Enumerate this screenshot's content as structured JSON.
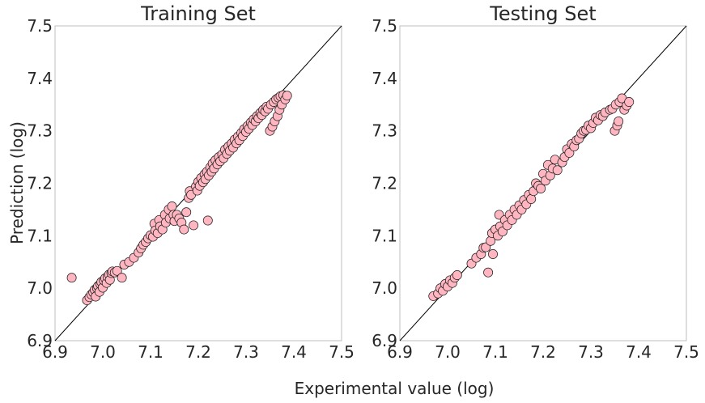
{
  "figure": {
    "xlabel": "Experimental value (log)",
    "ylabel": "Prediction (log)"
  },
  "chart_data": [
    {
      "type": "scatter",
      "title": "Training Set",
      "xlim": [
        6.9,
        7.5
      ],
      "ylim": [
        6.9,
        7.5
      ],
      "xticks": [
        "6.9",
        "7.0",
        "7.1",
        "7.2",
        "7.3",
        "7.4",
        "7.5"
      ],
      "yticks": [
        "6.9",
        "7.0",
        "7.1",
        "7.2",
        "7.3",
        "7.4",
        "7.5"
      ],
      "grid": false,
      "identity_line": true,
      "marker_color": "#ffb6c1",
      "points": [
        [
          6.935,
          7.02
        ],
        [
          6.967,
          6.977
        ],
        [
          6.972,
          6.983
        ],
        [
          6.976,
          6.988
        ],
        [
          6.98,
          6.992
        ],
        [
          6.983,
          6.997
        ],
        [
          6.985,
          6.984
        ],
        [
          6.988,
          7.0
        ],
        [
          6.99,
          7.004
        ],
        [
          6.993,
          6.993
        ],
        [
          6.995,
          7.008
        ],
        [
          6.997,
          7.012
        ],
        [
          7.0,
          7.001
        ],
        [
          7.002,
          7.015
        ],
        [
          7.005,
          7.019
        ],
        [
          7.008,
          7.01
        ],
        [
          7.01,
          7.022
        ],
        [
          7.013,
          7.026
        ],
        [
          7.015,
          7.016
        ],
        [
          7.018,
          7.029
        ],
        [
          7.02,
          7.032
        ],
        [
          7.025,
          7.03
        ],
        [
          7.03,
          7.033
        ],
        [
          7.04,
          7.02
        ],
        [
          7.045,
          7.045
        ],
        [
          7.055,
          7.05
        ],
        [
          7.065,
          7.058
        ],
        [
          7.075,
          7.068
        ],
        [
          7.08,
          7.076
        ],
        [
          7.085,
          7.083
        ],
        [
          7.09,
          7.088
        ],
        [
          7.095,
          7.095
        ],
        [
          7.1,
          7.101
        ],
        [
          7.105,
          7.098
        ],
        [
          7.108,
          7.123
        ],
        [
          7.11,
          7.11
        ],
        [
          7.115,
          7.105
        ],
        [
          7.118,
          7.13
        ],
        [
          7.12,
          7.118
        ],
        [
          7.125,
          7.112
        ],
        [
          7.13,
          7.14
        ],
        [
          7.132,
          7.125
        ],
        [
          7.138,
          7.15
        ],
        [
          7.14,
          7.133
        ],
        [
          7.145,
          7.156
        ],
        [
          7.148,
          7.14
        ],
        [
          7.15,
          7.128
        ],
        [
          7.155,
          7.14
        ],
        [
          7.16,
          7.133
        ],
        [
          7.165,
          7.125
        ],
        [
          7.17,
          7.112
        ],
        [
          7.175,
          7.145
        ],
        [
          7.18,
          7.172
        ],
        [
          7.182,
          7.185
        ],
        [
          7.185,
          7.178
        ],
        [
          7.19,
          7.12
        ],
        [
          7.195,
          7.194
        ],
        [
          7.198,
          7.186
        ],
        [
          7.2,
          7.203
        ],
        [
          7.203,
          7.195
        ],
        [
          7.206,
          7.21
        ],
        [
          7.21,
          7.202
        ],
        [
          7.213,
          7.217
        ],
        [
          7.215,
          7.208
        ],
        [
          7.218,
          7.222
        ],
        [
          7.22,
          7.129
        ],
        [
          7.222,
          7.215
        ],
        [
          7.225,
          7.23
        ],
        [
          7.228,
          7.222
        ],
        [
          7.23,
          7.238
        ],
        [
          7.233,
          7.228
        ],
        [
          7.236,
          7.244
        ],
        [
          7.24,
          7.236
        ],
        [
          7.243,
          7.25
        ],
        [
          7.246,
          7.242
        ],
        [
          7.25,
          7.255
        ],
        [
          7.253,
          7.248
        ],
        [
          7.256,
          7.264
        ],
        [
          7.26,
          7.256
        ],
        [
          7.263,
          7.27
        ],
        [
          7.266,
          7.262
        ],
        [
          7.27,
          7.276
        ],
        [
          7.273,
          7.268
        ],
        [
          7.276,
          7.283
        ],
        [
          7.28,
          7.276
        ],
        [
          7.283,
          7.289
        ],
        [
          7.286,
          7.282
        ],
        [
          7.29,
          7.296
        ],
        [
          7.293,
          7.29
        ],
        [
          7.296,
          7.303
        ],
        [
          7.3,
          7.298
        ],
        [
          7.303,
          7.309
        ],
        [
          7.306,
          7.304
        ],
        [
          7.31,
          7.316
        ],
        [
          7.313,
          7.311
        ],
        [
          7.316,
          7.322
        ],
        [
          7.32,
          7.318
        ],
        [
          7.323,
          7.328
        ],
        [
          7.326,
          7.324
        ],
        [
          7.33,
          7.334
        ],
        [
          7.333,
          7.33
        ],
        [
          7.336,
          7.34
        ],
        [
          7.34,
          7.337
        ],
        [
          7.343,
          7.346
        ],
        [
          7.346,
          7.342
        ],
        [
          7.35,
          7.3
        ],
        [
          7.352,
          7.35
        ],
        [
          7.355,
          7.308
        ],
        [
          7.358,
          7.355
        ],
        [
          7.36,
          7.318
        ],
        [
          7.363,
          7.36
        ],
        [
          7.366,
          7.328
        ],
        [
          7.368,
          7.363
        ],
        [
          7.37,
          7.34
        ],
        [
          7.372,
          7.366
        ],
        [
          7.375,
          7.35
        ],
        [
          7.378,
          7.368
        ],
        [
          7.382,
          7.36
        ],
        [
          7.386,
          7.367
        ]
      ]
    },
    {
      "type": "scatter",
      "title": "Testing Set",
      "xlim": [
        6.9,
        7.5
      ],
      "ylim": [
        6.9,
        7.5
      ],
      "xticks": [
        "6.9",
        "7.0",
        "7.1",
        "7.2",
        "7.3",
        "7.4",
        "7.5"
      ],
      "yticks": [
        "6.9",
        "7.0",
        "7.1",
        "7.2",
        "7.3",
        "7.4",
        "7.5"
      ],
      "grid": false,
      "identity_line": true,
      "marker_color": "#ffb6c1",
      "points": [
        [
          6.97,
          6.985
        ],
        [
          6.98,
          6.99
        ],
        [
          6.985,
          7.0
        ],
        [
          6.99,
          6.995
        ],
        [
          6.995,
          7.008
        ],
        [
          7.0,
          7.003
        ],
        [
          7.005,
          7.015
        ],
        [
          7.01,
          7.01
        ],
        [
          7.015,
          7.02
        ],
        [
          7.02,
          7.025
        ],
        [
          7.05,
          7.047
        ],
        [
          7.06,
          7.058
        ],
        [
          7.07,
          7.065
        ],
        [
          7.075,
          7.077
        ],
        [
          7.08,
          7.078
        ],
        [
          7.085,
          7.03
        ],
        [
          7.09,
          7.09
        ],
        [
          7.093,
          7.105
        ],
        [
          7.095,
          7.065
        ],
        [
          7.1,
          7.112
        ],
        [
          7.105,
          7.1
        ],
        [
          7.108,
          7.14
        ],
        [
          7.11,
          7.118
        ],
        [
          7.115,
          7.108
        ],
        [
          7.12,
          7.13
        ],
        [
          7.125,
          7.12
        ],
        [
          7.13,
          7.14
        ],
        [
          7.135,
          7.13
        ],
        [
          7.14,
          7.15
        ],
        [
          7.145,
          7.14
        ],
        [
          7.15,
          7.158
        ],
        [
          7.155,
          7.15
        ],
        [
          7.16,
          7.168
        ],
        [
          7.165,
          7.16
        ],
        [
          7.17,
          7.178
        ],
        [
          7.175,
          7.17
        ],
        [
          7.18,
          7.185
        ],
        [
          7.185,
          7.2
        ],
        [
          7.19,
          7.195
        ],
        [
          7.195,
          7.19
        ],
        [
          7.2,
          7.218
        ],
        [
          7.205,
          7.205
        ],
        [
          7.21,
          7.235
        ],
        [
          7.215,
          7.215
        ],
        [
          7.22,
          7.228
        ],
        [
          7.225,
          7.245
        ],
        [
          7.23,
          7.225
        ],
        [
          7.24,
          7.24
        ],
        [
          7.245,
          7.25
        ],
        [
          7.25,
          7.265
        ],
        [
          7.255,
          7.258
        ],
        [
          7.26,
          7.275
        ],
        [
          7.265,
          7.27
        ],
        [
          7.27,
          7.282
        ],
        [
          7.275,
          7.285
        ],
        [
          7.28,
          7.295
        ],
        [
          7.285,
          7.3
        ],
        [
          7.29,
          7.302
        ],
        [
          7.295,
          7.31
        ],
        [
          7.3,
          7.305
        ],
        [
          7.305,
          7.315
        ],
        [
          7.31,
          7.325
        ],
        [
          7.315,
          7.32
        ],
        [
          7.32,
          7.33
        ],
        [
          7.325,
          7.328
        ],
        [
          7.33,
          7.335
        ],
        [
          7.34,
          7.34
        ],
        [
          7.345,
          7.342
        ],
        [
          7.35,
          7.3
        ],
        [
          7.352,
          7.35
        ],
        [
          7.355,
          7.31
        ],
        [
          7.358,
          7.318
        ],
        [
          7.36,
          7.355
        ],
        [
          7.365,
          7.362
        ],
        [
          7.37,
          7.34
        ],
        [
          7.375,
          7.348
        ],
        [
          7.38,
          7.355
        ]
      ]
    }
  ]
}
